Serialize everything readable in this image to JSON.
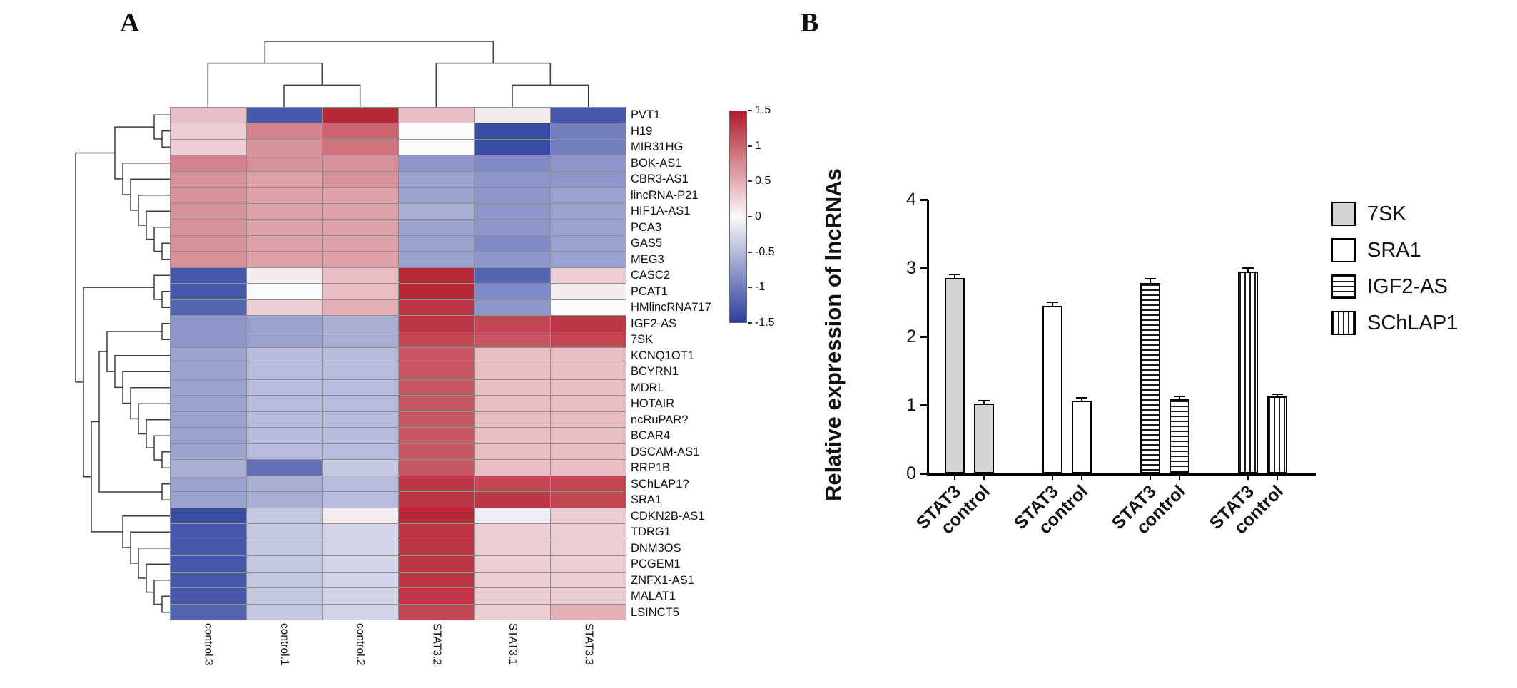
{
  "figure": {
    "panel_a": {
      "label": "A"
    },
    "panel_b": {
      "label": "B"
    }
  },
  "chart_data": [
    {
      "type": "heatmap",
      "panel": "A",
      "clustered": true,
      "columns": [
        "control.3",
        "control.1",
        "control.2",
        "STAT3.2",
        "STAT3.1",
        "STAT3.3"
      ],
      "rows": [
        "PVT1",
        "H19",
        "MIR31HG",
        "BOK-AS1",
        "CBR3-AS1",
        "lincRNA-P21",
        "HIF1A-AS1",
        "PCA3",
        "GAS5",
        "MEG3",
        "CASC2",
        "PCAT1",
        "HMlincRNA717",
        "IGF2-AS",
        "7SK",
        "KCNQ1OT1",
        "BCYRN1",
        "MDRL",
        "HOTAIR",
        "ncRuPAR?",
        "BCAR4",
        "DSCAM-AS1",
        "RRP1B",
        "SChLAP1?",
        "SRA1",
        "CDKN2B-AS1",
        "TDRG1",
        "DNM3OS",
        "PCGEM1",
        "ZNFX1-AS1",
        "MALAT1",
        "LSINCT5"
      ],
      "values": [
        [
          0.4,
          -1.3,
          1.4,
          0.4,
          0.1,
          -1.3
        ],
        [
          0.3,
          0.8,
          1.0,
          0.0,
          -1.4,
          -1.0
        ],
        [
          0.3,
          0.7,
          0.9,
          0.0,
          -1.4,
          -1.0
        ],
        [
          0.8,
          0.7,
          0.7,
          -0.8,
          -0.9,
          -0.8
        ],
        [
          0.7,
          0.6,
          0.7,
          -0.7,
          -0.8,
          -0.8
        ],
        [
          0.7,
          0.6,
          0.6,
          -0.7,
          -0.8,
          -0.7
        ],
        [
          0.7,
          0.6,
          0.6,
          -0.6,
          -0.8,
          -0.7
        ],
        [
          0.7,
          0.6,
          0.6,
          -0.7,
          -0.8,
          -0.7
        ],
        [
          0.7,
          0.6,
          0.6,
          -0.7,
          -0.9,
          -0.7
        ],
        [
          0.7,
          0.6,
          0.6,
          -0.7,
          -0.8,
          -0.7
        ],
        [
          -1.3,
          0.1,
          0.4,
          1.4,
          -1.2,
          0.3
        ],
        [
          -1.3,
          0.0,
          0.4,
          1.4,
          -0.9,
          0.1
        ],
        [
          -1.2,
          0.3,
          0.5,
          1.3,
          -0.8,
          0.0
        ],
        [
          -0.8,
          -0.7,
          -0.6,
          1.3,
          1.2,
          1.3
        ],
        [
          -0.8,
          -0.7,
          -0.6,
          1.2,
          1.1,
          1.2
        ],
        [
          -0.7,
          -0.5,
          -0.5,
          1.1,
          0.4,
          0.4
        ],
        [
          -0.7,
          -0.5,
          -0.5,
          1.1,
          0.4,
          0.4
        ],
        [
          -0.7,
          -0.5,
          -0.5,
          1.1,
          0.4,
          0.4
        ],
        [
          -0.7,
          -0.5,
          -0.5,
          1.1,
          0.4,
          0.4
        ],
        [
          -0.7,
          -0.5,
          -0.5,
          1.1,
          0.4,
          0.4
        ],
        [
          -0.7,
          -0.5,
          -0.5,
          1.1,
          0.4,
          0.4
        ],
        [
          -0.7,
          -0.5,
          -0.5,
          1.1,
          0.4,
          0.4
        ],
        [
          -0.6,
          -1.1,
          -0.4,
          1.1,
          0.4,
          0.4
        ],
        [
          -0.7,
          -0.6,
          -0.5,
          1.3,
          1.2,
          1.2
        ],
        [
          -0.7,
          -0.6,
          -0.5,
          1.3,
          1.3,
          1.2
        ],
        [
          -1.4,
          -0.4,
          0.1,
          1.4,
          -0.1,
          0.3
        ],
        [
          -1.3,
          -0.4,
          -0.3,
          1.3,
          0.3,
          0.3
        ],
        [
          -1.3,
          -0.4,
          -0.3,
          1.3,
          0.3,
          0.3
        ],
        [
          -1.3,
          -0.4,
          -0.3,
          1.3,
          0.3,
          0.3
        ],
        [
          -1.3,
          -0.4,
          -0.3,
          1.3,
          0.3,
          0.3
        ],
        [
          -1.3,
          -0.4,
          -0.3,
          1.3,
          0.3,
          0.3
        ],
        [
          -1.2,
          -0.4,
          -0.3,
          1.2,
          0.3,
          0.5
        ]
      ],
      "colorbar": {
        "min": -1.5,
        "max": 1.5,
        "ticks": [
          "1.5",
          "1",
          "0.5",
          "0",
          "-0.5",
          "-1",
          "-1.5"
        ],
        "max_color": "#b21a2b",
        "mid_color": "#fbfafa",
        "min_color": "#2c3e9e"
      }
    },
    {
      "type": "bar",
      "panel": "B",
      "ylabel": "Relative expression of lncRNAs",
      "ylim": [
        0,
        4
      ],
      "yticks": [
        "0",
        "1",
        "2",
        "3",
        "4"
      ],
      "grid": false,
      "legend_position": "right",
      "series": [
        {
          "name": "7SK",
          "pattern": "solid-gray",
          "bars": [
            {
              "label": "STAT3",
              "value": 2.85,
              "error": 0.05
            },
            {
              "label": "control",
              "value": 1.02,
              "error": 0.03
            }
          ]
        },
        {
          "name": "SRA1",
          "pattern": "solid-white",
          "bars": [
            {
              "label": "STAT3",
              "value": 2.45,
              "error": 0.04
            },
            {
              "label": "control",
              "value": 1.06,
              "error": 0.03
            }
          ]
        },
        {
          "name": "IGF2-AS",
          "pattern": "hlines",
          "bars": [
            {
              "label": "STAT3",
              "value": 2.78,
              "error": 0.05
            },
            {
              "label": "control",
              "value": 1.08,
              "error": 0.03
            }
          ]
        },
        {
          "name": "SChLAP1",
          "pattern": "vlines",
          "bars": [
            {
              "label": "STAT3",
              "value": 2.95,
              "error": 0.04
            },
            {
              "label": "control",
              "value": 1.12,
              "error": 0.03
            }
          ]
        }
      ],
      "legend": [
        {
          "label": "7SK",
          "pattern": "solid-gray"
        },
        {
          "label": "SRA1",
          "pattern": "solid-white"
        },
        {
          "label": "IGF2-AS",
          "pattern": "hlines"
        },
        {
          "label": "SChLAP1",
          "pattern": "vlines"
        }
      ]
    }
  ]
}
